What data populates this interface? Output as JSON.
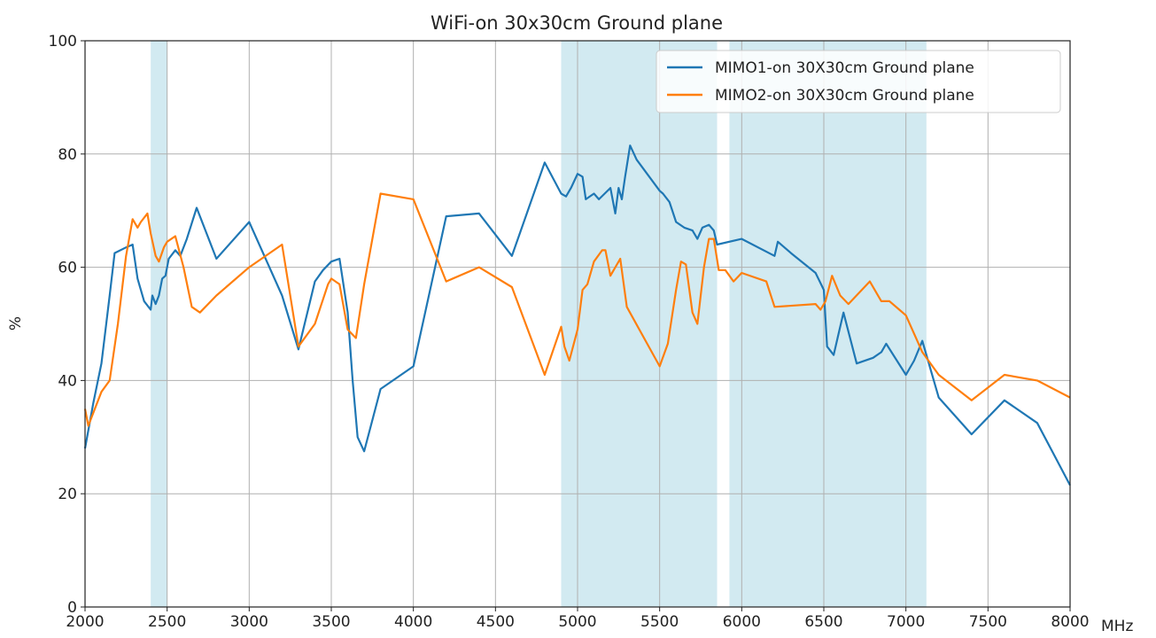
{
  "chart_data": {
    "type": "line",
    "title": "WiFi-on 30x30cm Ground plane",
    "xlabel": "",
    "ylabel": "%",
    "x_unit": "MHz",
    "xlim": [
      2000,
      8000
    ],
    "ylim": [
      0,
      100
    ],
    "xticks": [
      2000,
      2500,
      3000,
      3500,
      4000,
      4500,
      5000,
      5500,
      6000,
      6500,
      7000,
      7500,
      8000
    ],
    "yticks": [
      0,
      20,
      40,
      60,
      80,
      100
    ],
    "grid": true,
    "legend_position": "top-right",
    "shaded_bands": [
      [
        2400,
        2500
      ],
      [
        4900,
        5850
      ],
      [
        5925,
        7125
      ]
    ],
    "band_color": "#add8e6",
    "series": [
      {
        "name": "MIMO1-on 30X30cm Ground plane",
        "color": "#1f77b4",
        "points": [
          [
            2000,
            28
          ],
          [
            2050,
            36
          ],
          [
            2100,
            43
          ],
          [
            2150,
            55
          ],
          [
            2180,
            62.5
          ],
          [
            2250,
            63.5
          ],
          [
            2290,
            64
          ],
          [
            2320,
            58
          ],
          [
            2360,
            54
          ],
          [
            2400,
            52.5
          ],
          [
            2410,
            55
          ],
          [
            2430,
            53.5
          ],
          [
            2450,
            55
          ],
          [
            2470,
            58
          ],
          [
            2490,
            58.5
          ],
          [
            2510,
            61.5
          ],
          [
            2550,
            63
          ],
          [
            2580,
            62
          ],
          [
            2620,
            65
          ],
          [
            2680,
            70.5
          ],
          [
            2800,
            61.5
          ],
          [
            3000,
            68
          ],
          [
            3200,
            55
          ],
          [
            3300,
            45.5
          ],
          [
            3400,
            57.5
          ],
          [
            3450,
            59.5
          ],
          [
            3500,
            61
          ],
          [
            3550,
            61.5
          ],
          [
            3600,
            52
          ],
          [
            3630,
            40
          ],
          [
            3660,
            30
          ],
          [
            3700,
            27.5
          ],
          [
            3800,
            38.5
          ],
          [
            4000,
            42.5
          ],
          [
            4200,
            69
          ],
          [
            4400,
            69.5
          ],
          [
            4600,
            62
          ],
          [
            4800,
            78.5
          ],
          [
            4900,
            73
          ],
          [
            4930,
            72.5
          ],
          [
            4960,
            74
          ],
          [
            5000,
            76.5
          ],
          [
            5030,
            76
          ],
          [
            5050,
            72
          ],
          [
            5100,
            73
          ],
          [
            5130,
            72
          ],
          [
            5200,
            74
          ],
          [
            5230,
            69.5
          ],
          [
            5250,
            74
          ],
          [
            5270,
            72
          ],
          [
            5290,
            76
          ],
          [
            5320,
            81.5
          ],
          [
            5360,
            79
          ],
          [
            5500,
            73.5
          ],
          [
            5520,
            73
          ],
          [
            5560,
            71.5
          ],
          [
            5600,
            68
          ],
          [
            5650,
            67
          ],
          [
            5700,
            66.5
          ],
          [
            5730,
            65
          ],
          [
            5760,
            67
          ],
          [
            5800,
            67.5
          ],
          [
            5830,
            66.5
          ],
          [
            5850,
            64
          ],
          [
            6000,
            65
          ],
          [
            6200,
            62
          ],
          [
            6220,
            64.5
          ],
          [
            6300,
            62.5
          ],
          [
            6450,
            59
          ],
          [
            6500,
            56
          ],
          [
            6520,
            46
          ],
          [
            6560,
            44.5
          ],
          [
            6620,
            52
          ],
          [
            6700,
            43
          ],
          [
            6800,
            44
          ],
          [
            6850,
            45
          ],
          [
            6880,
            46.5
          ],
          [
            7000,
            41
          ],
          [
            7050,
            43.5
          ],
          [
            7100,
            47
          ],
          [
            7200,
            37
          ],
          [
            7400,
            30.5
          ],
          [
            7600,
            36.5
          ],
          [
            7800,
            32.5
          ],
          [
            7900,
            27
          ],
          [
            8000,
            21.5
          ]
        ]
      },
      {
        "name": "MIMO2-on 30X30cm Ground plane",
        "color": "#ff7f0e",
        "points": [
          [
            2000,
            35
          ],
          [
            2020,
            32
          ],
          [
            2100,
            38
          ],
          [
            2150,
            40
          ],
          [
            2200,
            50
          ],
          [
            2250,
            62
          ],
          [
            2290,
            68.5
          ],
          [
            2320,
            67
          ],
          [
            2340,
            68
          ],
          [
            2380,
            69.5
          ],
          [
            2400,
            66
          ],
          [
            2430,
            62
          ],
          [
            2450,
            61
          ],
          [
            2480,
            63.5
          ],
          [
            2500,
            64.5
          ],
          [
            2550,
            65.5
          ],
          [
            2600,
            60
          ],
          [
            2650,
            53
          ],
          [
            2700,
            52
          ],
          [
            2800,
            55
          ],
          [
            3000,
            60
          ],
          [
            3200,
            64
          ],
          [
            3300,
            46
          ],
          [
            3400,
            50
          ],
          [
            3480,
            57
          ],
          [
            3500,
            58
          ],
          [
            3550,
            57
          ],
          [
            3600,
            49
          ],
          [
            3650,
            47.5
          ],
          [
            3700,
            57
          ],
          [
            3800,
            73
          ],
          [
            4000,
            72
          ],
          [
            4200,
            57.5
          ],
          [
            4400,
            60
          ],
          [
            4600,
            56.5
          ],
          [
            4800,
            41
          ],
          [
            4900,
            49.5
          ],
          [
            4920,
            46
          ],
          [
            4950,
            43.5
          ],
          [
            5000,
            49
          ],
          [
            5030,
            56
          ],
          [
            5060,
            57
          ],
          [
            5100,
            61
          ],
          [
            5150,
            63
          ],
          [
            5170,
            63
          ],
          [
            5200,
            58.5
          ],
          [
            5260,
            61.5
          ],
          [
            5300,
            53
          ],
          [
            5500,
            42.5
          ],
          [
            5550,
            46.5
          ],
          [
            5600,
            56
          ],
          [
            5630,
            61
          ],
          [
            5660,
            60.5
          ],
          [
            5700,
            52
          ],
          [
            5730,
            50
          ],
          [
            5770,
            60
          ],
          [
            5800,
            65
          ],
          [
            5830,
            65
          ],
          [
            5860,
            59.5
          ],
          [
            5900,
            59.5
          ],
          [
            5950,
            57.5
          ],
          [
            6000,
            59
          ],
          [
            6150,
            57.5
          ],
          [
            6200,
            53
          ],
          [
            6450,
            53.5
          ],
          [
            6480,
            52.5
          ],
          [
            6510,
            54
          ],
          [
            6550,
            58.5
          ],
          [
            6600,
            55
          ],
          [
            6650,
            53.5
          ],
          [
            6780,
            57.5
          ],
          [
            6850,
            54
          ],
          [
            6900,
            54
          ],
          [
            7000,
            51.5
          ],
          [
            7100,
            45
          ],
          [
            7200,
            41
          ],
          [
            7400,
            36.5
          ],
          [
            7600,
            41
          ],
          [
            7800,
            40
          ],
          [
            8000,
            37
          ]
        ]
      }
    ]
  }
}
